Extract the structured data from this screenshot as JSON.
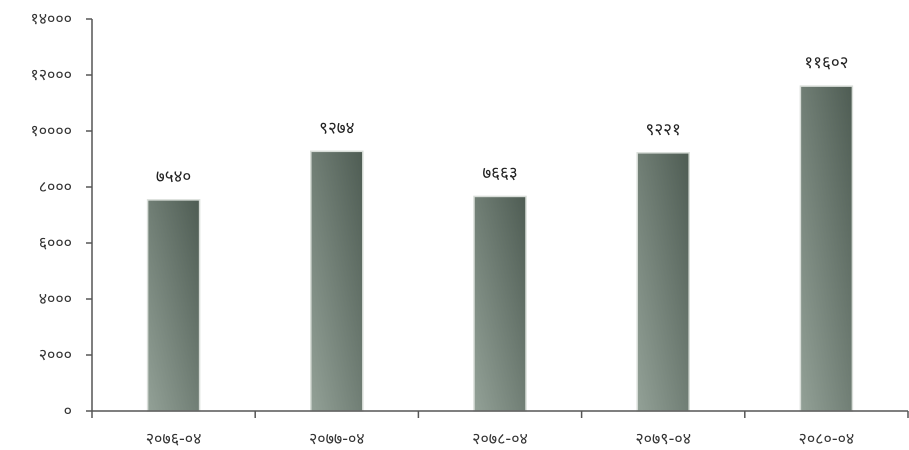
{
  "chart_data": {
    "type": "bar",
    "title": "",
    "xlabel": "",
    "ylabel": "",
    "categories": [
      "२०७६-०४",
      "२०७७-०४",
      "२०७८-०४",
      "२०७९-०४",
      "२०८०-०४"
    ],
    "values": [
      7540,
      9274,
      7663,
      9221,
      11602
    ],
    "value_labels": [
      "७५४०",
      "९२७४",
      "७६६३",
      "९२२१",
      "११६०२"
    ],
    "ylim": [
      0,
      14000
    ],
    "y_ticks": [
      0,
      2000,
      4000,
      6000,
      8000,
      10000,
      12000,
      14000
    ],
    "y_tick_labels": [
      "०",
      "२०००",
      "४०००",
      "६०००",
      "८०००",
      "१००००",
      "१२०००",
      "१४०००"
    ],
    "grid": false,
    "legend": "none"
  },
  "colors": {
    "bar_dark": "#4e5c53",
    "bar_light": "#93a197",
    "axis": "#555555"
  }
}
